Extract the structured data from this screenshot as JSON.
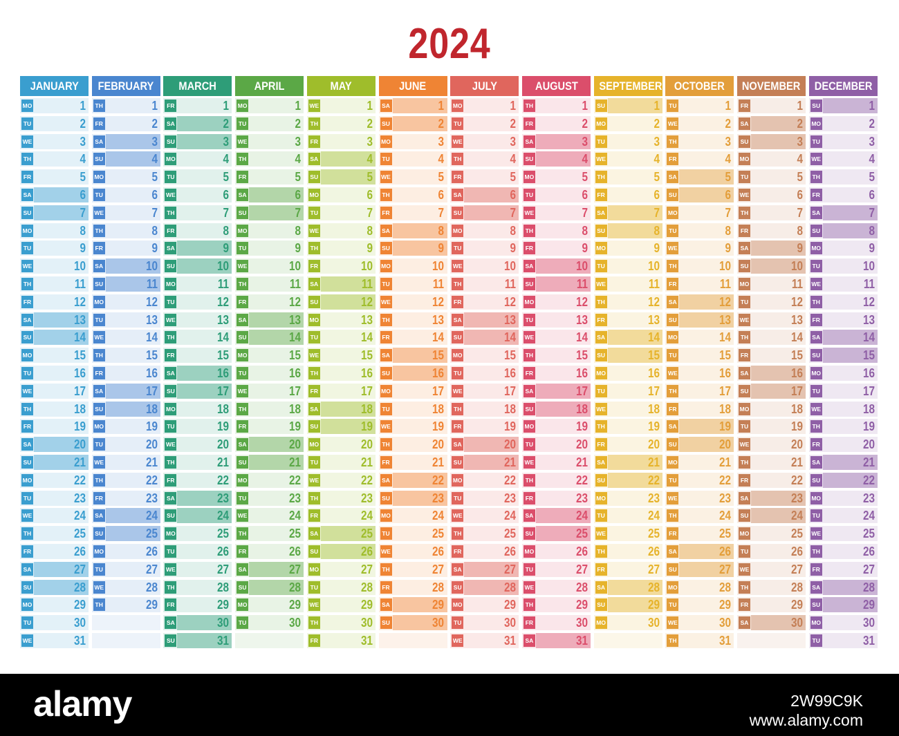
{
  "title": "2024",
  "title_color": "#c0262d",
  "weekday_labels": [
    "MO",
    "TU",
    "WE",
    "TH",
    "FR",
    "SA",
    "SU"
  ],
  "months": [
    {
      "name": "JANUARY",
      "days": 31,
      "first_weekday": 0,
      "color": "#3a9ecf"
    },
    {
      "name": "FEBRUARY",
      "days": 29,
      "first_weekday": 3,
      "color": "#4a86cf"
    },
    {
      "name": "MARCH",
      "days": 31,
      "first_weekday": 4,
      "color": "#2e9d78"
    },
    {
      "name": "APRIL",
      "days": 30,
      "first_weekday": 0,
      "color": "#5ba846"
    },
    {
      "name": "MAY",
      "days": 31,
      "first_weekday": 2,
      "color": "#9fbd2b"
    },
    {
      "name": "JUNE",
      "days": 30,
      "first_weekday": 5,
      "color": "#ef8434"
    },
    {
      "name": "JULY",
      "days": 31,
      "first_weekday": 0,
      "color": "#e0665d"
    },
    {
      "name": "AUGUST",
      "days": 31,
      "first_weekday": 3,
      "color": "#db4e6b"
    },
    {
      "name": "SEPTEMBER",
      "days": 30,
      "first_weekday": 6,
      "color": "#e6b32b"
    },
    {
      "name": "OCTOBER",
      "days": 31,
      "first_weekday": 1,
      "color": "#e39e3a"
    },
    {
      "name": "NOVEMBER",
      "days": 30,
      "first_weekday": 4,
      "color": "#c47f56"
    },
    {
      "name": "DECEMBER",
      "days": 31,
      "first_weekday": 6,
      "color": "#8f5fa6"
    }
  ],
  "footer": {
    "brand": "alamy",
    "image_id": "2W99C9K",
    "site": "www.alamy.com"
  }
}
